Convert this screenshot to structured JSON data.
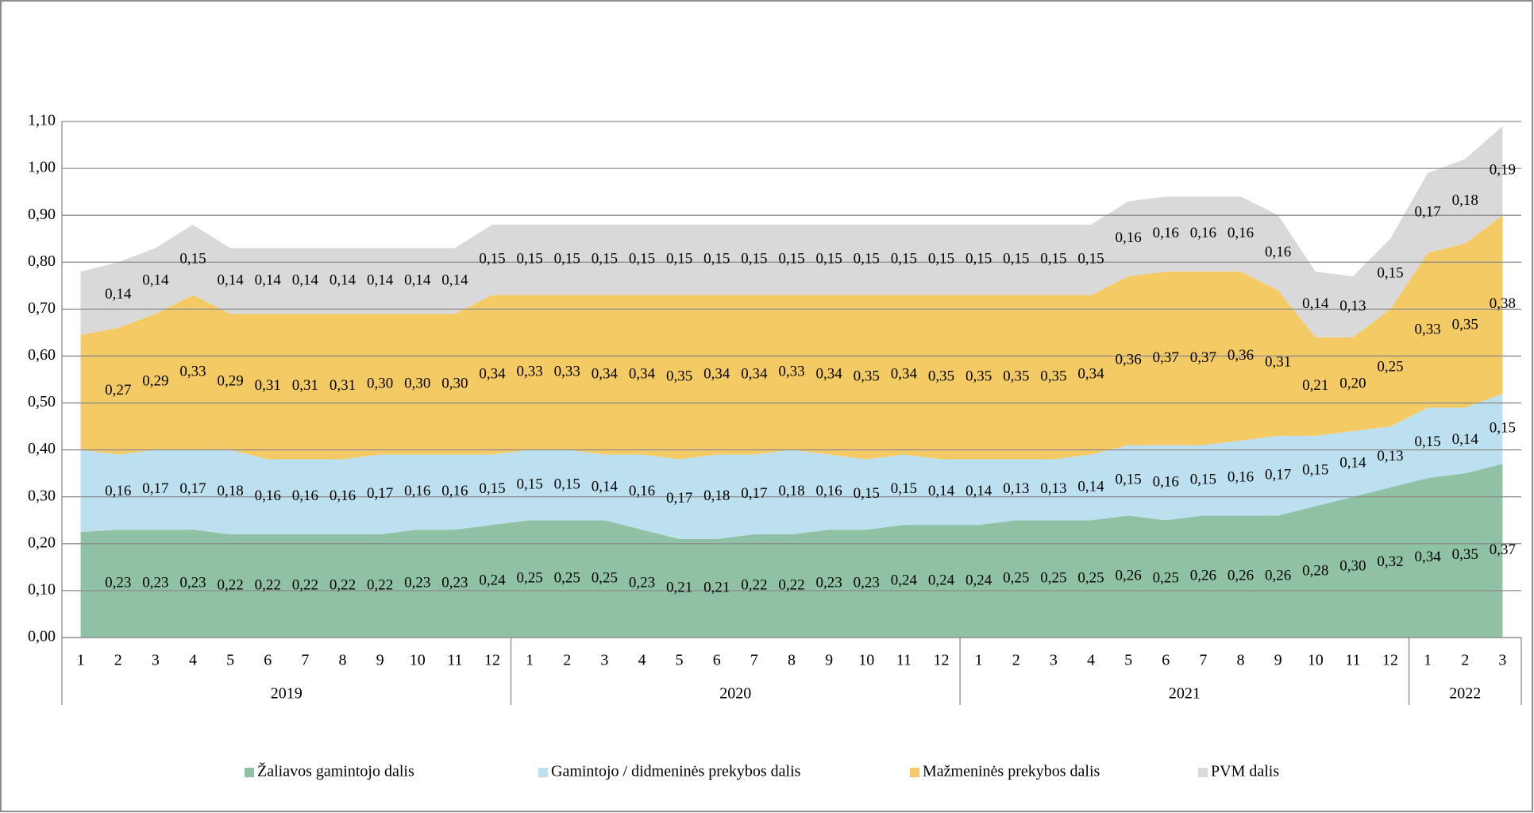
{
  "chart_data": {
    "type": "stacked_area",
    "category_groups": [
      {
        "name": "2019",
        "categories": [
          "1",
          "2",
          "3",
          "4",
          "5",
          "6",
          "7",
          "8",
          "9",
          "10",
          "11",
          "12"
        ]
      },
      {
        "name": "2020",
        "categories": [
          "1",
          "2",
          "3",
          "4",
          "5",
          "6",
          "7",
          "8",
          "9",
          "10",
          "11",
          "12"
        ]
      },
      {
        "name": "2021",
        "categories": [
          "1",
          "2",
          "3",
          "4",
          "5",
          "6",
          "7",
          "8",
          "9",
          "10",
          "11",
          "12"
        ]
      },
      {
        "name": "2022",
        "categories": [
          "1",
          "2",
          "3"
        ]
      }
    ],
    "series": [
      {
        "name": "Žaliavos gamintojo dalis",
        "color": "#8fc1a5",
        "values": [
          0.225,
          0.23,
          0.23,
          0.23,
          0.22,
          0.22,
          0.22,
          0.22,
          0.22,
          0.23,
          0.23,
          0.24,
          0.25,
          0.25,
          0.25,
          0.23,
          0.21,
          0.21,
          0.22,
          0.22,
          0.23,
          0.23,
          0.24,
          0.24,
          0.24,
          0.25,
          0.25,
          0.25,
          0.26,
          0.25,
          0.26,
          0.26,
          0.26,
          0.28,
          0.3,
          0.32,
          0.34,
          0.35,
          0.37
        ],
        "value_labels": [
          null,
          "0,23",
          "0,23",
          "0,23",
          "0,22",
          "0,22",
          "0,22",
          "0,22",
          "0,22",
          "0,23",
          "0,23",
          "0,24",
          "0,25",
          "0,25",
          "0,25",
          "0,23",
          "0,21",
          "0,21",
          "0,22",
          "0,22",
          "0,23",
          "0,23",
          "0,24",
          "0,24",
          "0,24",
          "0,25",
          "0,25",
          "0,25",
          "0,26",
          "0,25",
          "0,26",
          "0,26",
          "0,26",
          "0,28",
          "0,30",
          "0,32",
          "0,34",
          "0,35",
          "0,37"
        ]
      },
      {
        "name": "Gamintojo / didmeninės prekybos dalis",
        "color": "#bde0f0",
        "values": [
          0.175,
          0.16,
          0.17,
          0.17,
          0.18,
          0.16,
          0.16,
          0.16,
          0.17,
          0.16,
          0.16,
          0.15,
          0.15,
          0.15,
          0.14,
          0.16,
          0.17,
          0.18,
          0.17,
          0.18,
          0.16,
          0.15,
          0.15,
          0.14,
          0.14,
          0.13,
          0.13,
          0.14,
          0.15,
          0.16,
          0.15,
          0.16,
          0.17,
          0.15,
          0.14,
          0.13,
          0.15,
          0.14,
          0.15
        ],
        "value_labels": [
          null,
          "0,16",
          "0,17",
          "0,17",
          "0,18",
          "0,16",
          "0,16",
          "0,16",
          "0,17",
          "0,16",
          "0,16",
          "0,15",
          "0,15",
          "0,15",
          "0,14",
          "0,16",
          "0,17",
          "0,18",
          "0,17",
          "0,18",
          "0,16",
          "0,15",
          "0,15",
          "0,14",
          "0,14",
          "0,13",
          "0,13",
          "0,14",
          "0,15",
          "0,16",
          "0,15",
          "0,16",
          "0,17",
          "0,15",
          "0,14",
          "0,13",
          "0,15",
          "0,14",
          "0,15"
        ]
      },
      {
        "name": "Mažmeninės prekybos dalis",
        "color": "#f4ca64",
        "values": [
          0.245,
          0.27,
          0.29,
          0.33,
          0.29,
          0.31,
          0.31,
          0.31,
          0.3,
          0.3,
          0.3,
          0.34,
          0.33,
          0.33,
          0.34,
          0.34,
          0.35,
          0.34,
          0.34,
          0.33,
          0.34,
          0.35,
          0.34,
          0.35,
          0.35,
          0.35,
          0.35,
          0.34,
          0.36,
          0.37,
          0.37,
          0.36,
          0.31,
          0.21,
          0.2,
          0.25,
          0.33,
          0.35,
          0.38
        ],
        "value_labels": [
          null,
          "0,27",
          "0,29",
          "0,33",
          "0,29",
          "0,31",
          "0,31",
          "0,31",
          "0,30",
          "0,30",
          "0,30",
          "0,34",
          "0,33",
          "0,33",
          "0,34",
          "0,34",
          "0,35",
          "0,34",
          "0,34",
          "0,33",
          "0,34",
          "0,35",
          "0,34",
          "0,35",
          "0,35",
          "0,35",
          "0,35",
          "0,34",
          "0,36",
          "0,37",
          "0,37",
          "0,36",
          "0,31",
          "0,21",
          "0,20",
          "0,25",
          "0,33",
          "0,35",
          "0,38"
        ]
      },
      {
        "name": "PVM dalis",
        "color": "#d9d9d9",
        "values": [
          0.135,
          0.14,
          0.14,
          0.15,
          0.14,
          0.14,
          0.14,
          0.14,
          0.14,
          0.14,
          0.14,
          0.15,
          0.15,
          0.15,
          0.15,
          0.15,
          0.15,
          0.15,
          0.15,
          0.15,
          0.15,
          0.15,
          0.15,
          0.15,
          0.15,
          0.15,
          0.15,
          0.15,
          0.16,
          0.16,
          0.16,
          0.16,
          0.16,
          0.14,
          0.13,
          0.15,
          0.17,
          0.18,
          0.19
        ],
        "value_labels": [
          null,
          "0,14",
          "0,14",
          "0,15",
          "0,14",
          "0,14",
          "0,14",
          "0,14",
          "0,14",
          "0,14",
          "0,14",
          "0,15",
          "0,15",
          "0,15",
          "0,15",
          "0,15",
          "0,15",
          "0,15",
          "0,15",
          "0,15",
          "0,15",
          "0,15",
          "0,15",
          "0,15",
          "0,15",
          "0,15",
          "0,15",
          "0,15",
          "0,16",
          "0,16",
          "0,16",
          "0,16",
          "0,16",
          "0,14",
          "0,13",
          "0,15",
          "0,17",
          "0,18",
          "0,19"
        ]
      }
    ],
    "ylim": [
      0,
      1.1
    ],
    "yticks": [
      {
        "value": 0,
        "label": "0,00"
      },
      {
        "value": 0.1,
        "label": "0,10"
      },
      {
        "value": 0.2,
        "label": "0,20"
      },
      {
        "value": 0.3,
        "label": "0,30"
      },
      {
        "value": 0.4,
        "label": "0,40"
      },
      {
        "value": 0.5,
        "label": "0,50"
      },
      {
        "value": 0.6,
        "label": "0,60"
      },
      {
        "value": 0.7,
        "label": "0,70"
      },
      {
        "value": 0.8,
        "label": "0,80"
      },
      {
        "value": 0.9,
        "label": "0,90"
      },
      {
        "value": 1.0,
        "label": "1,00"
      },
      {
        "value": 1.1,
        "label": "1,10"
      }
    ],
    "grid": true,
    "legend": "bottom"
  }
}
